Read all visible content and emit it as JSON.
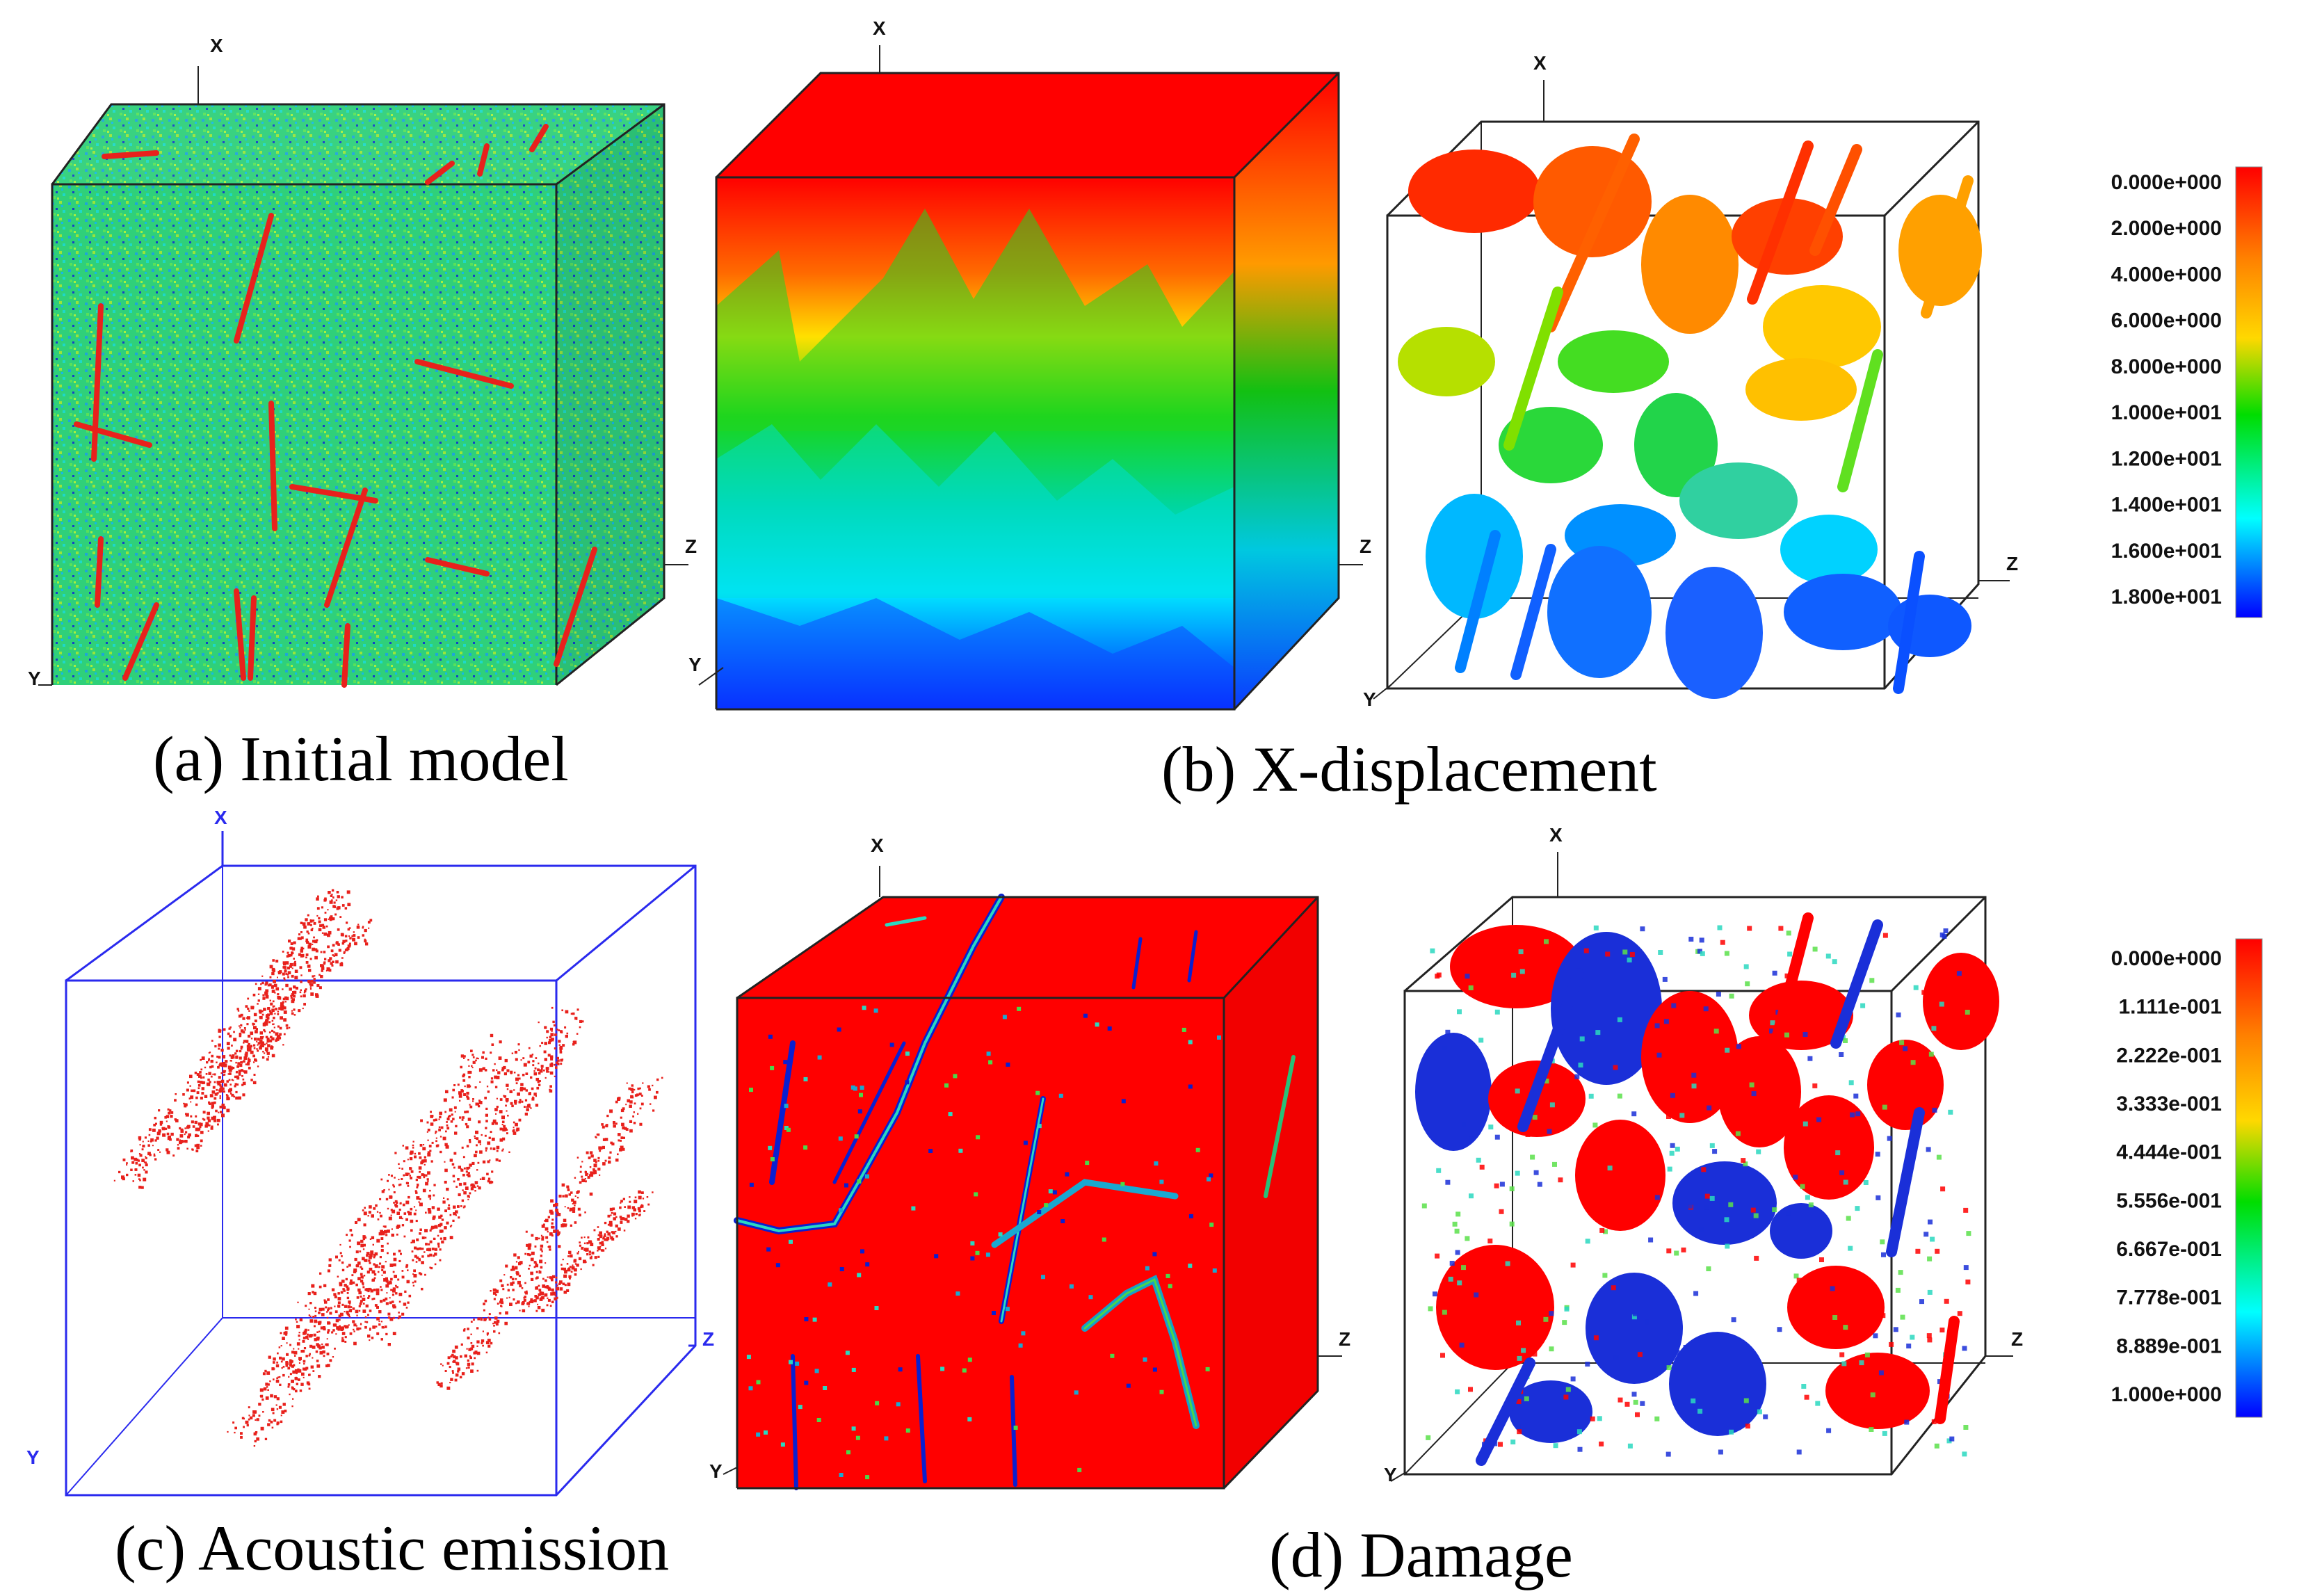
{
  "panels": {
    "a": {
      "caption": "(a) Initial model"
    },
    "b": {
      "caption": "(b) X-displacement"
    },
    "c": {
      "caption": "(c) Acoustic emission"
    },
    "d": {
      "caption": "(d) Damage"
    }
  },
  "axes": {
    "x": "X",
    "y": "Y",
    "z": "Z"
  },
  "colorbars": {
    "displacement": {
      "labels": [
        "0.000e+000",
        "2.000e+000",
        "4.000e+000",
        "6.000e+000",
        "8.000e+000",
        "1.000e+001",
        "1.200e+001",
        "1.400e+001",
        "1.600e+001",
        "1.800e+001"
      ],
      "colors": [
        "#ff0000",
        "#ff7f00",
        "#ffd800",
        "#00dd00",
        "#00ffff",
        "#0000ff"
      ]
    },
    "damage": {
      "labels": [
        "0.000e+000",
        "1.111e-001",
        "2.222e-001",
        "3.333e-001",
        "4.444e-001",
        "5.556e-001",
        "6.667e-001",
        "7.778e-001",
        "8.889e-001",
        "1.000e+000"
      ],
      "colors": [
        "#ff0000",
        "#ff7f00",
        "#ffd800",
        "#00dd00",
        "#00ffff",
        "#0000ff"
      ]
    }
  },
  "colors": {
    "flaw": "#e8211c",
    "model_base": "#2fd07a",
    "damage_low": "#ff0000",
    "damage_high": "#0a1fd0",
    "ae_box": "#2a2aee"
  }
}
